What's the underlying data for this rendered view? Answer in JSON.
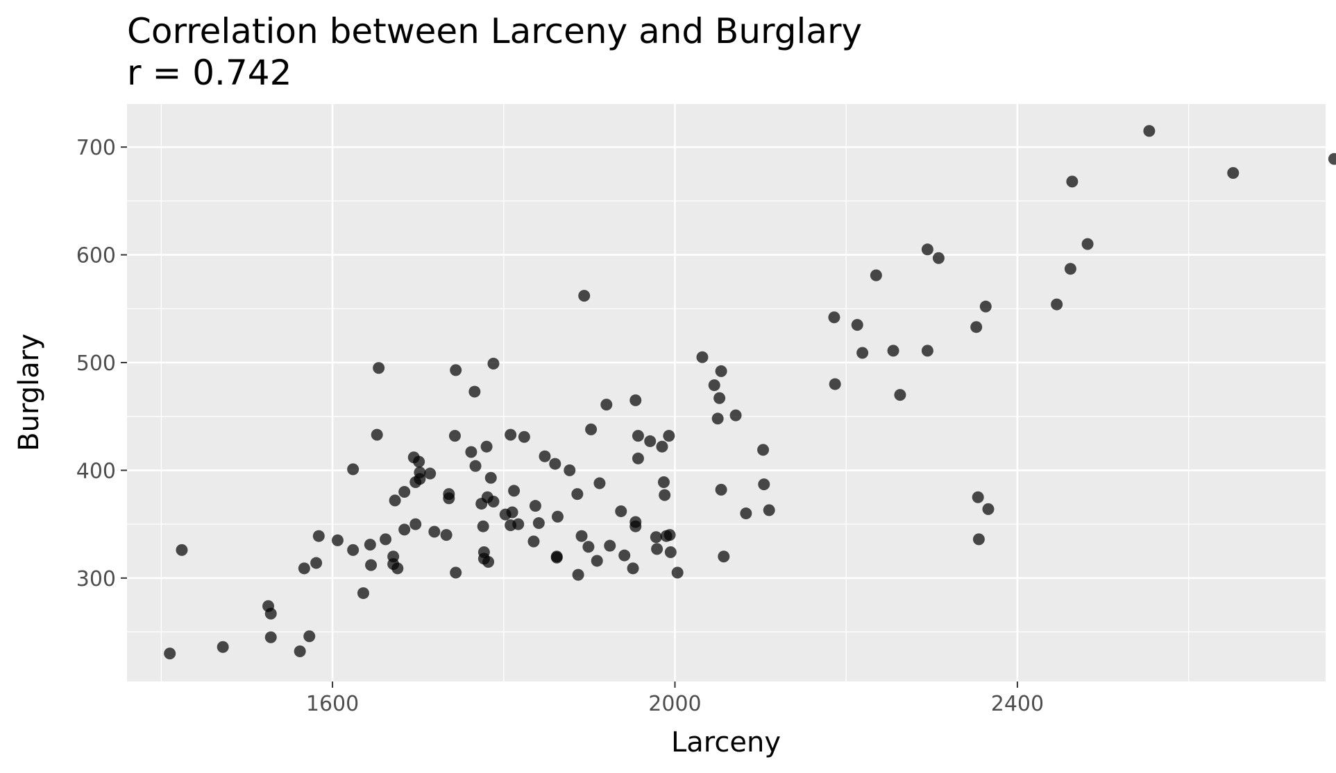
{
  "chart_data": {
    "type": "scatter",
    "title": "Correlation between Larceny and Burglary",
    "subtitle": "r = 0.742",
    "xlabel": "Larceny",
    "ylabel": "Burglary",
    "xlim": [
      1360,
      2760
    ],
    "ylim": [
      204,
      740
    ],
    "x_ticks": [
      1600,
      2000,
      2400
    ],
    "x_tick_labels": [
      "1600",
      "2000",
      "2400"
    ],
    "y_ticks": [
      300,
      400,
      500,
      600,
      700
    ],
    "y_tick_labels": [
      "300",
      "400",
      "500",
      "600",
      "700"
    ],
    "grid": true,
    "colors": {
      "panel": "#ebebeb",
      "grid": "#ffffff",
      "point": "#000000",
      "point_opacity": 0.7
    },
    "points": [
      {
        "x": 1410,
        "y": 230
      },
      {
        "x": 1424,
        "y": 326
      },
      {
        "x": 1472,
        "y": 236
      },
      {
        "x": 1525,
        "y": 274
      },
      {
        "x": 1528,
        "y": 267
      },
      {
        "x": 1528,
        "y": 245
      },
      {
        "x": 1562,
        "y": 232
      },
      {
        "x": 1567,
        "y": 309
      },
      {
        "x": 1573,
        "y": 246
      },
      {
        "x": 1581,
        "y": 314
      },
      {
        "x": 1584,
        "y": 339
      },
      {
        "x": 1606,
        "y": 335
      },
      {
        "x": 1624,
        "y": 401
      },
      {
        "x": 1624,
        "y": 326
      },
      {
        "x": 1636,
        "y": 286
      },
      {
        "x": 1644,
        "y": 331
      },
      {
        "x": 1645,
        "y": 312
      },
      {
        "x": 1652,
        "y": 433
      },
      {
        "x": 1654,
        "y": 495
      },
      {
        "x": 1662,
        "y": 336
      },
      {
        "x": 1671,
        "y": 320
      },
      {
        "x": 1671,
        "y": 313
      },
      {
        "x": 1673,
        "y": 372
      },
      {
        "x": 1676,
        "y": 309
      },
      {
        "x": 1684,
        "y": 345
      },
      {
        "x": 1684,
        "y": 380
      },
      {
        "x": 1695,
        "y": 412
      },
      {
        "x": 1697,
        "y": 350
      },
      {
        "x": 1697,
        "y": 389
      },
      {
        "x": 1701,
        "y": 408
      },
      {
        "x": 1702,
        "y": 392
      },
      {
        "x": 1702,
        "y": 398
      },
      {
        "x": 1714,
        "y": 397
      },
      {
        "x": 1719,
        "y": 343
      },
      {
        "x": 1733,
        "y": 340
      },
      {
        "x": 1736,
        "y": 378
      },
      {
        "x": 1736,
        "y": 374
      },
      {
        "x": 1743,
        "y": 432
      },
      {
        "x": 1744,
        "y": 493
      },
      {
        "x": 1744,
        "y": 305
      },
      {
        "x": 1762,
        "y": 417
      },
      {
        "x": 1766,
        "y": 473
      },
      {
        "x": 1767,
        "y": 404
      },
      {
        "x": 1774,
        "y": 369
      },
      {
        "x": 1776,
        "y": 348
      },
      {
        "x": 1777,
        "y": 324
      },
      {
        "x": 1777,
        "y": 318
      },
      {
        "x": 1780,
        "y": 422
      },
      {
        "x": 1781,
        "y": 375
      },
      {
        "x": 1782,
        "y": 315
      },
      {
        "x": 1785,
        "y": 393
      },
      {
        "x": 1788,
        "y": 371
      },
      {
        "x": 1788,
        "y": 499
      },
      {
        "x": 1802,
        "y": 359
      },
      {
        "x": 1808,
        "y": 433
      },
      {
        "x": 1808,
        "y": 349
      },
      {
        "x": 1810,
        "y": 361
      },
      {
        "x": 1812,
        "y": 381
      },
      {
        "x": 1817,
        "y": 350
      },
      {
        "x": 1824,
        "y": 431
      },
      {
        "x": 1835,
        "y": 334
      },
      {
        "x": 1837,
        "y": 367
      },
      {
        "x": 1841,
        "y": 351
      },
      {
        "x": 1848,
        "y": 413
      },
      {
        "x": 1860,
        "y": 406
      },
      {
        "x": 1862,
        "y": 320
      },
      {
        "x": 1862,
        "y": 319
      },
      {
        "x": 1863,
        "y": 357
      },
      {
        "x": 1877,
        "y": 400
      },
      {
        "x": 1886,
        "y": 378
      },
      {
        "x": 1887,
        "y": 303
      },
      {
        "x": 1891,
        "y": 339
      },
      {
        "x": 1894,
        "y": 562
      },
      {
        "x": 1899,
        "y": 329
      },
      {
        "x": 1902,
        "y": 438
      },
      {
        "x": 1909,
        "y": 316
      },
      {
        "x": 1912,
        "y": 388
      },
      {
        "x": 1920,
        "y": 461
      },
      {
        "x": 1924,
        "y": 330
      },
      {
        "x": 1937,
        "y": 362
      },
      {
        "x": 1941,
        "y": 321
      },
      {
        "x": 1951,
        "y": 309
      },
      {
        "x": 1954,
        "y": 352
      },
      {
        "x": 1954,
        "y": 348
      },
      {
        "x": 1954,
        "y": 465
      },
      {
        "x": 1957,
        "y": 432
      },
      {
        "x": 1957,
        "y": 411
      },
      {
        "x": 1971,
        "y": 427
      },
      {
        "x": 1978,
        "y": 338
      },
      {
        "x": 1979,
        "y": 327
      },
      {
        "x": 1985,
        "y": 422
      },
      {
        "x": 1987,
        "y": 389
      },
      {
        "x": 1988,
        "y": 377
      },
      {
        "x": 1990,
        "y": 339
      },
      {
        "x": 1993,
        "y": 432
      },
      {
        "x": 1994,
        "y": 340
      },
      {
        "x": 1995,
        "y": 324
      },
      {
        "x": 2003,
        "y": 305
      },
      {
        "x": 2032,
        "y": 505
      },
      {
        "x": 2046,
        "y": 479
      },
      {
        "x": 2050,
        "y": 448
      },
      {
        "x": 2052,
        "y": 467
      },
      {
        "x": 2054,
        "y": 492
      },
      {
        "x": 2054,
        "y": 382
      },
      {
        "x": 2057,
        "y": 320
      },
      {
        "x": 2071,
        "y": 451
      },
      {
        "x": 2083,
        "y": 360
      },
      {
        "x": 2103,
        "y": 419
      },
      {
        "x": 2104,
        "y": 387
      },
      {
        "x": 2110,
        "y": 363
      },
      {
        "x": 2186,
        "y": 542
      },
      {
        "x": 2187,
        "y": 480
      },
      {
        "x": 2213,
        "y": 535
      },
      {
        "x": 2219,
        "y": 509
      },
      {
        "x": 2235,
        "y": 581
      },
      {
        "x": 2255,
        "y": 511
      },
      {
        "x": 2263,
        "y": 470
      },
      {
        "x": 2295,
        "y": 605
      },
      {
        "x": 2295,
        "y": 511
      },
      {
        "x": 2308,
        "y": 597
      },
      {
        "x": 2352,
        "y": 533
      },
      {
        "x": 2354,
        "y": 375
      },
      {
        "x": 2355,
        "y": 336
      },
      {
        "x": 2363,
        "y": 552
      },
      {
        "x": 2366,
        "y": 364
      },
      {
        "x": 2446,
        "y": 554
      },
      {
        "x": 2462,
        "y": 587
      },
      {
        "x": 2464,
        "y": 668
      },
      {
        "x": 2482,
        "y": 610
      },
      {
        "x": 2554,
        "y": 715
      },
      {
        "x": 2652,
        "y": 676
      },
      {
        "x": 2770,
        "y": 689
      }
    ]
  }
}
